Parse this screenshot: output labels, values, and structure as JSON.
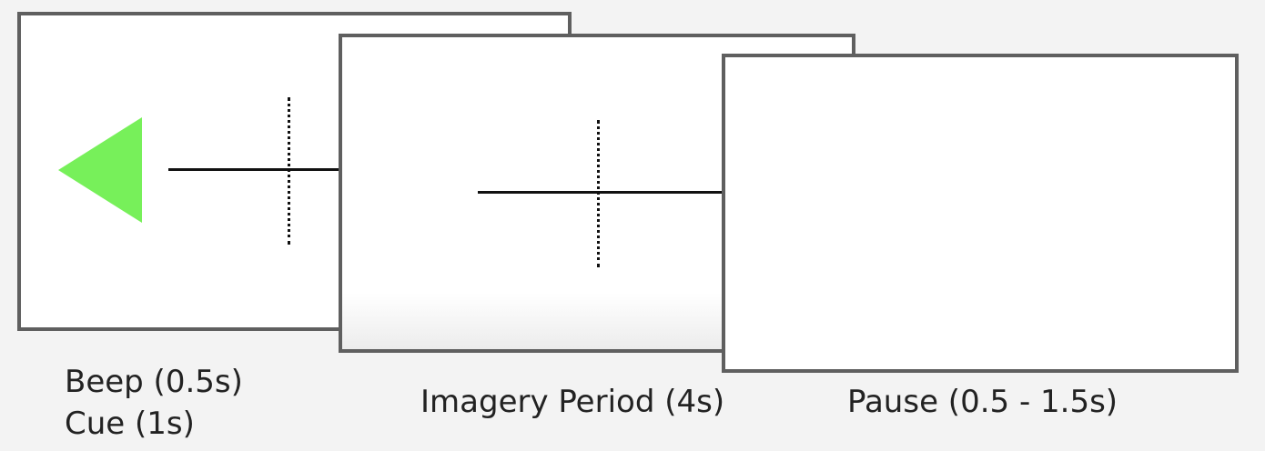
{
  "panels": {
    "cue": {
      "triangle_color": "#77f05a",
      "triangle_direction": "left"
    },
    "imagery": {},
    "pause": {}
  },
  "labels": {
    "beep": "Beep (0.5s)",
    "cue": "Cue (1s)",
    "imagery": "Imagery Period (4s)",
    "pause": "Pause (0.5 - 1.5s)"
  },
  "colors": {
    "background": "#f3f3f3",
    "panel_border": "#5f5f5f",
    "fixation": "#111111"
  }
}
